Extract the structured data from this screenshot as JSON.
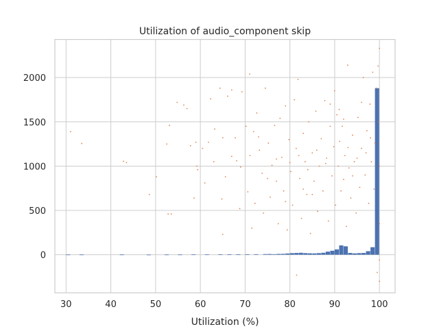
{
  "chart_data": {
    "type": "histogram+scatter",
    "title": "Utilization of audio_component skip",
    "xlabel": "Utilization (%)",
    "ylabel": "",
    "xlim": [
      27.5,
      103.5
    ],
    "ylim": [
      -430,
      2430
    ],
    "xticks": [
      30,
      40,
      50,
      60,
      70,
      80,
      90,
      100
    ],
    "yticks": [
      0,
      500,
      1000,
      1500,
      2000
    ],
    "grid": true,
    "colors": {
      "bars": "#4c72b0",
      "points": "#dd8452"
    },
    "series": [
      {
        "kind": "histogram",
        "bin_width": 1,
        "bins": [
          {
            "x": 30.5,
            "v": 2
          },
          {
            "x": 33.5,
            "v": 2
          },
          {
            "x": 42.5,
            "v": 2
          },
          {
            "x": 48.5,
            "v": 1
          },
          {
            "x": 52.5,
            "v": 2
          },
          {
            "x": 55.5,
            "v": 2
          },
          {
            "x": 58.5,
            "v": 3
          },
          {
            "x": 61.5,
            "v": 3
          },
          {
            "x": 64.5,
            "v": 4
          },
          {
            "x": 66.5,
            "v": 4
          },
          {
            "x": 68.5,
            "v": 5
          },
          {
            "x": 70.5,
            "v": 5
          },
          {
            "x": 72.5,
            "v": 6
          },
          {
            "x": 74.5,
            "v": 7
          },
          {
            "x": 75.5,
            "v": 8
          },
          {
            "x": 76.5,
            "v": 6
          },
          {
            "x": 77.5,
            "v": 9
          },
          {
            "x": 78.5,
            "v": 10
          },
          {
            "x": 79.5,
            "v": 14
          },
          {
            "x": 80.5,
            "v": 18
          },
          {
            "x": 81.5,
            "v": 20
          },
          {
            "x": 82.5,
            "v": 22
          },
          {
            "x": 83.5,
            "v": 18
          },
          {
            "x": 84.5,
            "v": 16
          },
          {
            "x": 85.5,
            "v": 15
          },
          {
            "x": 86.5,
            "v": 18
          },
          {
            "x": 87.5,
            "v": 22
          },
          {
            "x": 88.5,
            "v": 35
          },
          {
            "x": 89.5,
            "v": 45
          },
          {
            "x": 90.5,
            "v": 60
          },
          {
            "x": 91.5,
            "v": 105
          },
          {
            "x": 92.5,
            "v": 95
          },
          {
            "x": 93.5,
            "v": 20
          },
          {
            "x": 94.5,
            "v": 15
          },
          {
            "x": 95.5,
            "v": 18
          },
          {
            "x": 96.5,
            "v": 20
          },
          {
            "x": 97.5,
            "v": 40
          },
          {
            "x": 98.5,
            "v": 85
          },
          {
            "x": 99.5,
            "v": 1880
          }
        ]
      },
      {
        "kind": "scatter",
        "points": [
          [
            31,
            1390
          ],
          [
            33.5,
            1255
          ],
          [
            42.8,
            1055
          ],
          [
            43.5,
            1040
          ],
          [
            48.6,
            680
          ],
          [
            50.2,
            880
          ],
          [
            52.5,
            1250
          ],
          [
            53.1,
            1460
          ],
          [
            52.8,
            460
          ],
          [
            53.5,
            460
          ],
          [
            54.8,
            1720
          ],
          [
            56.3,
            1690
          ],
          [
            57.0,
            1650
          ],
          [
            57.8,
            1230
          ],
          [
            58.6,
            640
          ],
          [
            59.0,
            1270
          ],
          [
            59.2,
            1000
          ],
          [
            59.4,
            960
          ],
          [
            60.5,
            1200
          ],
          [
            61.8,
            1270
          ],
          [
            62.3,
            1760
          ],
          [
            63.2,
            1420
          ],
          [
            64.4,
            1880
          ],
          [
            64.8,
            630
          ],
          [
            65.0,
            230
          ],
          [
            65.6,
            880
          ],
          [
            66.1,
            1790
          ],
          [
            67.0,
            1860
          ],
          [
            67.8,
            1320
          ],
          [
            68.1,
            1060
          ],
          [
            68.8,
            520
          ],
          [
            69.3,
            1840
          ],
          [
            70.2,
            1450
          ],
          [
            70.6,
            710
          ],
          [
            71.1,
            1120
          ],
          [
            71.5,
            300
          ],
          [
            71.9,
            1390
          ],
          [
            72.2,
            580
          ],
          [
            72.6,
            1600
          ],
          [
            73.2,
            1180
          ],
          [
            73.8,
            920
          ],
          [
            74.1,
            470
          ],
          [
            74.5,
            1880
          ],
          [
            75.2,
            1260
          ],
          [
            75.6,
            650
          ],
          [
            76.0,
            1010
          ],
          [
            76.6,
            1460
          ],
          [
            77.0,
            830
          ],
          [
            77.4,
            350
          ],
          [
            77.8,
            1540
          ],
          [
            78.2,
            1100
          ],
          [
            78.6,
            720
          ],
          [
            79.0,
            1680
          ],
          [
            79.4,
            280
          ],
          [
            79.8,
            1300
          ],
          [
            80.2,
            940
          ],
          [
            80.6,
            560
          ],
          [
            81.0,
            1750
          ],
          [
            81.4,
            1200
          ],
          [
            81.8,
            1980
          ],
          [
            82.2,
            860
          ],
          [
            82.6,
            410
          ],
          [
            83.0,
            1370
          ],
          [
            83.4,
            1050
          ],
          [
            83.8,
            680
          ],
          [
            84.2,
            1500
          ],
          [
            84.6,
            240
          ],
          [
            85.0,
            1150
          ],
          [
            85.4,
            830
          ],
          [
            85.8,
            1620
          ],
          [
            86.2,
            490
          ],
          [
            86.6,
            1000
          ],
          [
            87.0,
            1310
          ],
          [
            87.4,
            720
          ],
          [
            87.8,
            1740
          ],
          [
            88.2,
            1090
          ],
          [
            88.6,
            380
          ],
          [
            89.0,
            1450
          ],
          [
            89.4,
            890
          ],
          [
            89.8,
            1220
          ],
          [
            90.2,
            560
          ],
          [
            90.5,
            1580
          ],
          [
            90.8,
            1000
          ],
          [
            91.1,
            1280
          ],
          [
            91.4,
            720
          ],
          [
            91.7,
            1450
          ],
          [
            92.0,
            850
          ],
          [
            92.3,
            1120
          ],
          [
            92.6,
            320
          ],
          [
            92.9,
            2140
          ],
          [
            93.2,
            980
          ],
          [
            93.6,
            640
          ],
          [
            94.0,
            1350
          ],
          [
            94.4,
            1050
          ],
          [
            94.8,
            470
          ],
          [
            95.2,
            1550
          ],
          [
            95.6,
            760
          ],
          [
            96.0,
            1200
          ],
          [
            96.4,
            2000
          ],
          [
            96.8,
            900
          ],
          [
            97.2,
            1400
          ],
          [
            97.6,
            580
          ],
          [
            97.9,
            1700
          ],
          [
            98.2,
            1050
          ],
          [
            98.5,
            2060
          ],
          [
            98.8,
            740
          ],
          [
            99.0,
            1260
          ],
          [
            99.3,
            1880
          ],
          [
            99.5,
            -200
          ],
          [
            99.7,
            2130
          ],
          [
            99.9,
            1500
          ],
          [
            100.0,
            -300
          ],
          [
            100.0,
            2330
          ],
          [
            100.0,
            1000
          ],
          [
            100.0,
            350
          ],
          [
            100.0,
            -60
          ],
          [
            81.5,
            -230
          ],
          [
            88.0,
            1030
          ],
          [
            86.0,
            1180
          ],
          [
            84.0,
            960
          ],
          [
            82.0,
            1120
          ],
          [
            80.0,
            1040
          ],
          [
            90.0,
            1850
          ],
          [
            91.0,
            1640
          ],
          [
            92.0,
            1530
          ],
          [
            89.0,
            1700
          ],
          [
            96.0,
            1720
          ],
          [
            97.0,
            1150
          ],
          [
            98.0,
            1320
          ],
          [
            95.0,
            1090
          ],
          [
            94.0,
            890
          ],
          [
            93.0,
            1210
          ],
          [
            85.0,
            680
          ],
          [
            83.0,
            740
          ],
          [
            79.0,
            600
          ],
          [
            77.0,
            1080
          ],
          [
            75.0,
            860
          ],
          [
            73.0,
            1330
          ],
          [
            71.0,
            2040
          ],
          [
            69.0,
            990
          ],
          [
            67.0,
            1110
          ],
          [
            65.0,
            1320
          ],
          [
            63.0,
            1050
          ],
          [
            61.0,
            810
          ]
        ]
      }
    ]
  }
}
